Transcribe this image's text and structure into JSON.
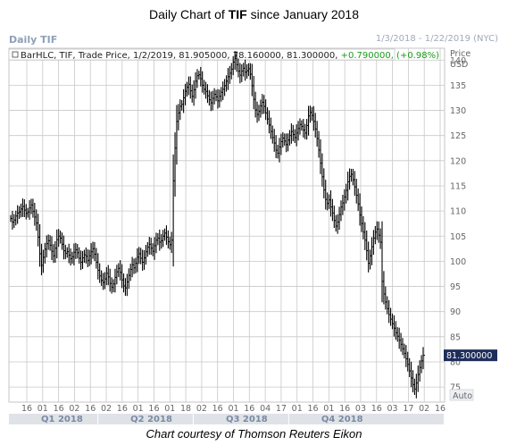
{
  "chart_title_prefix": "Daily Chart of ",
  "chart_title_ticker": "TIF",
  "chart_title_suffix": " since January 2018",
  "panel_label": "Daily TIF",
  "date_range": "1/3/2018 - 1/22/2019 (NYC)",
  "footer": "Chart courtesy of Thomson Reuters Eikon",
  "legend": {
    "prefix": "BarHLC, TIF, Trade Price, 1/2/2019, 81.905000, 78.160000, 81.300000, ",
    "change": "+0.790000, (+0.98%)",
    "change_color": "#1a9a1a"
  },
  "axis": {
    "price_label": "Price",
    "currency_label": "USD",
    "last_price_label": "81.300000",
    "auto_label": "Auto"
  },
  "colors": {
    "bars": "#000000",
    "grid": "#c8c8c8",
    "quarter_band": "#dfe3e8"
  },
  "chart_data": {
    "type": "bar",
    "subtype": "OHLC price bars (high-low-close)",
    "ylim": [
      72,
      142
    ],
    "y_ticks": [
      75,
      80,
      85,
      90,
      95,
      100,
      105,
      110,
      115,
      120,
      125,
      130,
      135,
      140
    ],
    "x_tick_labels": [
      "16",
      "01",
      "16",
      "02",
      "16",
      "02",
      "16",
      "01",
      "16",
      "01",
      "18",
      "02",
      "16",
      "01",
      "16",
      "04",
      "17",
      "01",
      "16",
      "01",
      "16",
      "03",
      "16",
      "03",
      "17",
      "02",
      "16"
    ],
    "quarters": [
      "Q1 2018",
      "Q2 2018",
      "Q3 2018",
      "Q4 2018"
    ],
    "last_price": 81.3,
    "close_series": [
      108.5,
      107.8,
      108.2,
      109.0,
      109.6,
      109.8,
      110.4,
      110.9,
      110.2,
      109.5,
      109.8,
      110.6,
      111.2,
      109.9,
      108.8,
      107.6,
      104.8,
      101.5,
      99.2,
      100.8,
      102.4,
      103.5,
      104.1,
      103.2,
      102.0,
      101.1,
      102.6,
      104.3,
      105.0,
      104.6,
      103.4,
      102.1,
      101.6,
      101.9,
      101.2,
      100.5,
      100.9,
      101.8,
      102.3,
      101.7,
      100.6,
      99.8,
      100.7,
      101.3,
      101.0,
      100.2,
      101.1,
      101.9,
      102.5,
      101.4,
      99.8,
      98.2,
      97.1,
      96.2,
      95.8,
      96.5,
      97.6,
      96.9,
      95.6,
      94.8,
      95.5,
      96.8,
      97.9,
      98.6,
      97.8,
      96.3,
      95.1,
      94.7,
      95.9,
      97.2,
      98.4,
      99.3,
      98.7,
      99.6,
      100.8,
      101.5,
      100.6,
      99.8,
      100.7,
      101.9,
      102.8,
      103.4,
      102.6,
      102.0,
      103.1,
      104.2,
      104.6,
      103.8,
      104.1,
      105.0,
      105.6,
      104.8,
      103.9,
      103.3,
      104.2,
      116.0,
      122.5,
      127.8,
      129.5,
      130.8,
      131.2,
      132.5,
      133.8,
      134.6,
      135.2,
      133.9,
      132.8,
      134.1,
      135.8,
      136.9,
      137.1,
      136.3,
      135.0,
      134.2,
      133.8,
      132.9,
      132.1,
      131.5,
      132.4,
      133.2,
      132.7,
      131.9,
      132.8,
      133.6,
      134.2,
      134.9,
      135.8,
      136.7,
      137.4,
      138.2,
      139.6,
      140.3,
      139.1,
      137.8,
      137.0,
      137.8,
      138.4,
      137.6,
      137.9,
      138.3,
      137.2,
      134.9,
      132.2,
      130.1,
      129.2,
      129.8,
      130.9,
      131.6,
      130.8,
      129.5,
      128.3,
      127.1,
      125.8,
      124.6,
      123.5,
      122.1,
      121.5,
      122.7,
      123.8,
      124.5,
      123.9,
      123.2,
      124.1,
      125.0,
      125.8,
      125.2,
      124.6,
      125.5,
      126.4,
      127.2,
      126.8,
      126.1,
      125.5,
      127.0,
      128.9,
      129.6,
      129.0,
      127.8,
      126.3,
      124.4,
      122.1,
      119.5,
      116.8,
      114.2,
      112.3,
      111.5,
      112.2,
      110.8,
      109.6,
      108.1,
      107.0,
      107.8,
      109.3,
      110.8,
      111.6,
      112.8,
      114.1,
      115.8,
      116.9,
      117.3,
      116.2,
      114.8,
      113.1,
      111.4,
      109.2,
      107.5,
      105.8,
      104.2,
      102.1,
      99.6,
      101.1,
      102.9,
      104.6,
      105.8,
      106.4,
      105.2,
      103.8,
      96.0,
      93.5,
      91.9,
      90.6,
      89.4,
      88.5,
      87.6,
      86.7,
      85.8,
      85.1,
      84.3,
      83.5,
      82.6,
      81.7,
      80.6,
      79.5,
      78.2,
      76.8,
      75.5,
      74.6,
      75.8,
      77.5,
      78.9,
      80.2,
      81.3
    ]
  }
}
